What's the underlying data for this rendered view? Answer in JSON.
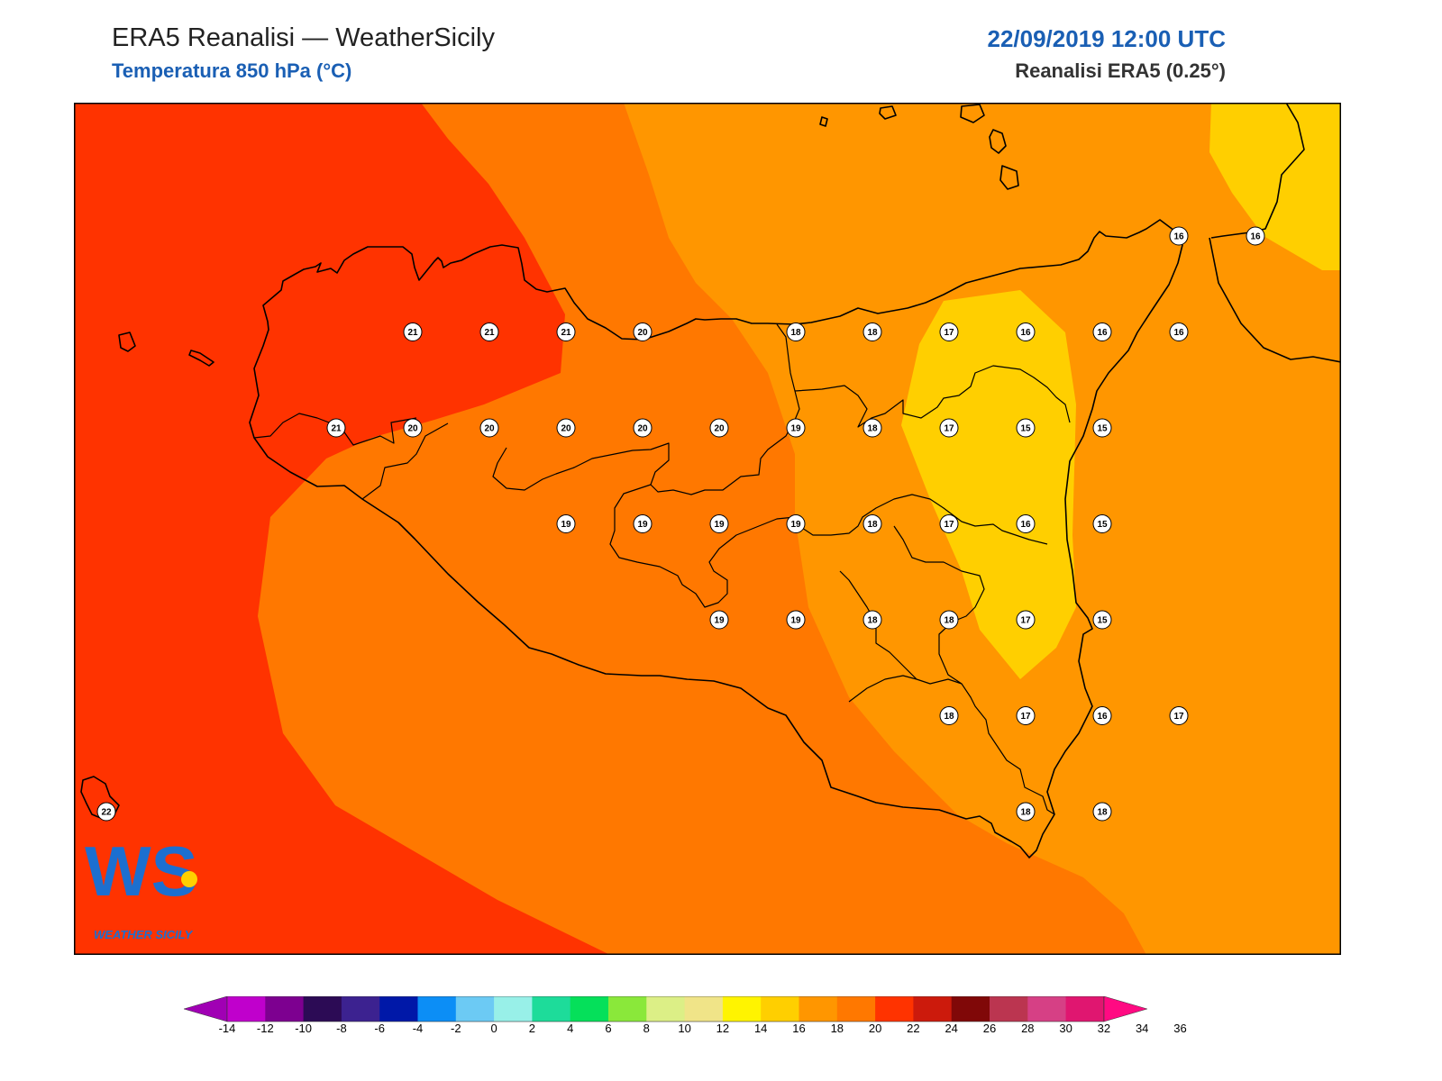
{
  "header": {
    "title": "ERA5 Reanalisi — WeatherSicily",
    "subtitle": "Temperatura 850 hPa (°C)",
    "datetime": "22/09/2019 12:00 UTC",
    "source": "Reanalisi ERA5 (0.25°)"
  },
  "logo": {
    "text": "WEATHER SICILY",
    "letters": "WS"
  },
  "colorbar": {
    "ticks": [
      "-14",
      "-12",
      "-10",
      "-8",
      "-6",
      "-4",
      "-2",
      "0",
      "2",
      "4",
      "6",
      "8",
      "10",
      "12",
      "14",
      "16",
      "18",
      "20",
      "22",
      "24",
      "26",
      "28",
      "30",
      "32",
      "34",
      "36"
    ],
    "colors": [
      "#a000b4",
      "#c000cc",
      "#7d0090",
      "#2c0b55",
      "#3c2290",
      "#0018a8",
      "#0c8ef6",
      "#6ccaf4",
      "#98f0e8",
      "#1ddc9a",
      "#05e05a",
      "#8ae83a",
      "#dcef86",
      "#f0e488",
      "#fff400",
      "#ffcf00",
      "#ff9600",
      "#ff7800",
      "#ff3300",
      "#cc1a0c",
      "#800808",
      "#bb3550",
      "#d64085",
      "#e01670",
      "#ff0a82"
    ]
  },
  "map": {
    "colors": {
      "t22": "#ff3300",
      "t20": "#ff7800",
      "t18": "#ff9600",
      "t16": "#ffcf00"
    },
    "stations": [
      {
        "v": "21",
        "lon": 12.6,
        "lat": 38.1
      },
      {
        "v": "21",
        "lon": 13.1,
        "lat": 38.1
      },
      {
        "v": "21",
        "lon": 13.6,
        "lat": 38.1
      },
      {
        "v": "20",
        "lon": 14.1,
        "lat": 38.1
      },
      {
        "v": "18",
        "lon": 15.1,
        "lat": 38.1
      },
      {
        "v": "18",
        "lon": 15.6,
        "lat": 38.1
      },
      {
        "v": "17",
        "lon": 16.1,
        "lat": 38.1
      },
      {
        "v": "16",
        "lon": 16.6,
        "lat": 38.1
      },
      {
        "v": "16",
        "lon": 17.1,
        "lat": 38.1
      },
      {
        "v": "16",
        "lon": 17.6,
        "lat": 38.1
      },
      {
        "v": "16",
        "lon": 17.6,
        "lat": 38.6
      },
      {
        "v": "16",
        "lon": 18.1,
        "lat": 38.6
      },
      {
        "v": "21",
        "lon": 12.1,
        "lat": 37.6
      },
      {
        "v": "20",
        "lon": 12.6,
        "lat": 37.6
      },
      {
        "v": "20",
        "lon": 13.1,
        "lat": 37.6
      },
      {
        "v": "20",
        "lon": 13.6,
        "lat": 37.6
      },
      {
        "v": "20",
        "lon": 14.1,
        "lat": 37.6
      },
      {
        "v": "20",
        "lon": 14.6,
        "lat": 37.6
      },
      {
        "v": "19",
        "lon": 15.1,
        "lat": 37.6
      },
      {
        "v": "18",
        "lon": 15.6,
        "lat": 37.6
      },
      {
        "v": "17",
        "lon": 16.1,
        "lat": 37.6
      },
      {
        "v": "15",
        "lon": 16.6,
        "lat": 37.6
      },
      {
        "v": "15",
        "lon": 17.1,
        "lat": 37.6
      },
      {
        "v": "19",
        "lon": 13.6,
        "lat": 37.1
      },
      {
        "v": "19",
        "lon": 14.1,
        "lat": 37.1
      },
      {
        "v": "19",
        "lon": 14.6,
        "lat": 37.1
      },
      {
        "v": "19",
        "lon": 15.1,
        "lat": 37.1
      },
      {
        "v": "18",
        "lon": 15.6,
        "lat": 37.1
      },
      {
        "v": "17",
        "lon": 16.1,
        "lat": 37.1
      },
      {
        "v": "16",
        "lon": 16.6,
        "lat": 37.1
      },
      {
        "v": "15",
        "lon": 17.1,
        "lat": 37.1
      },
      {
        "v": "19",
        "lon": 14.6,
        "lat": 36.6
      },
      {
        "v": "19",
        "lon": 15.1,
        "lat": 36.6
      },
      {
        "v": "18",
        "lon": 15.6,
        "lat": 36.6
      },
      {
        "v": "18",
        "lon": 16.1,
        "lat": 36.6
      },
      {
        "v": "17",
        "lon": 16.6,
        "lat": 36.6
      },
      {
        "v": "15",
        "lon": 17.1,
        "lat": 36.6
      },
      {
        "v": "18",
        "lon": 16.1,
        "lat": 36.1
      },
      {
        "v": "17",
        "lon": 16.6,
        "lat": 36.1
      },
      {
        "v": "16",
        "lon": 17.1,
        "lat": 36.1
      },
      {
        "v": "17",
        "lon": 17.6,
        "lat": 36.1
      },
      {
        "v": "18",
        "lon": 16.6,
        "lat": 35.6
      },
      {
        "v": "18",
        "lon": 17.1,
        "lat": 35.6
      },
      {
        "v": "22",
        "lon": 10.6,
        "lat": 35.6
      }
    ]
  }
}
